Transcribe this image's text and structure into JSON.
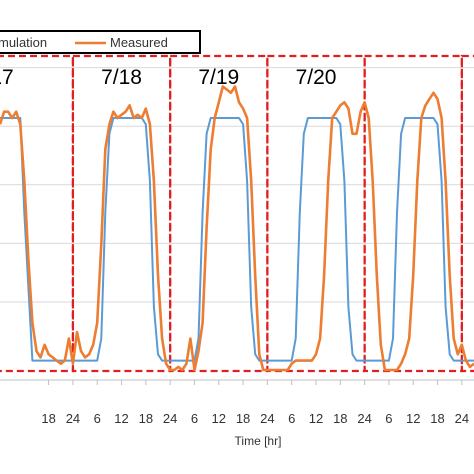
{
  "chart_data": {
    "type": "line",
    "xlabel": "Time [hr]",
    "x_tick_labels": [
      "18",
      "24",
      "6",
      "12",
      "18",
      "24",
      "6",
      "12",
      "18",
      "24",
      "6",
      "12",
      "18",
      "24",
      "6",
      "12",
      "18",
      "24"
    ],
    "x_tick_hours": [
      18,
      24,
      30,
      36,
      42,
      48,
      54,
      60,
      66,
      72,
      78,
      84,
      90,
      96,
      102,
      108,
      114,
      120
    ],
    "xlim": [
      6,
      123
    ],
    "ylim": [
      0,
      1
    ],
    "grid": "horizontal",
    "legend": {
      "placement": "top-left",
      "entries": [
        "mulation",
        "Measured"
      ]
    },
    "day_labels": [
      {
        "text": "17",
        "hour": 6.5
      },
      {
        "text": "7/18",
        "hour": 36
      },
      {
        "text": "7/19",
        "hour": 60
      },
      {
        "text": "7/20",
        "hour": 84
      }
    ],
    "day_boundaries": [
      24,
      48,
      72,
      96,
      120
    ],
    "series": [
      {
        "name": "mulation",
        "color": "#5b9bd5",
        "x": [
          6,
          7,
          8,
          9,
          10,
          11,
          12,
          14,
          15,
          30,
          31,
          32,
          33,
          34,
          35,
          41,
          42,
          43,
          44,
          45,
          46,
          54,
          55,
          56,
          57,
          58,
          59,
          65,
          66,
          67,
          68,
          69,
          70,
          78,
          79,
          80,
          81,
          82,
          83,
          89,
          90,
          91,
          92,
          93,
          94,
          102,
          103,
          104,
          105,
          106,
          107,
          113,
          114,
          115,
          116,
          117,
          118,
          123
        ],
        "values": [
          0.8,
          0.8,
          0.8,
          0.8,
          0.8,
          0.8,
          0.5,
          0.03,
          0.03,
          0.03,
          0.1,
          0.5,
          0.75,
          0.8,
          0.8,
          0.8,
          0.78,
          0.6,
          0.2,
          0.05,
          0.03,
          0.03,
          0.1,
          0.5,
          0.75,
          0.8,
          0.8,
          0.8,
          0.78,
          0.6,
          0.2,
          0.05,
          0.03,
          0.03,
          0.1,
          0.5,
          0.75,
          0.8,
          0.8,
          0.8,
          0.78,
          0.6,
          0.2,
          0.05,
          0.03,
          0.03,
          0.1,
          0.5,
          0.75,
          0.8,
          0.8,
          0.8,
          0.78,
          0.6,
          0.2,
          0.05,
          0.03,
          0.03
        ]
      },
      {
        "name": "Measured",
        "color": "#ed7d31",
        "x": [
          6,
          7,
          8,
          9,
          10,
          11,
          12,
          13,
          14,
          15,
          16,
          17,
          18,
          19,
          20,
          21,
          22,
          23,
          24,
          25,
          26,
          27,
          28,
          29,
          30,
          31,
          32,
          33,
          34,
          35,
          36,
          37,
          38,
          39,
          40,
          41,
          42,
          43,
          44,
          45,
          46,
          47,
          48,
          49,
          50,
          51,
          52,
          53,
          54,
          55,
          56,
          57,
          58,
          59,
          60,
          61,
          62,
          63,
          64,
          65,
          66,
          67,
          68,
          69,
          70,
          71,
          72,
          73,
          74,
          75,
          76,
          77,
          78,
          79,
          80,
          81,
          82,
          83,
          84,
          85,
          86,
          87,
          88,
          89,
          90,
          91,
          92,
          93,
          94,
          95,
          96,
          97,
          98,
          99,
          100,
          101,
          102,
          103,
          104,
          105,
          106,
          107,
          108,
          109,
          110,
          111,
          112,
          113,
          114,
          115,
          116,
          117,
          118,
          119,
          120,
          121,
          122,
          123
        ],
        "values": [
          0.78,
          0.82,
          0.82,
          0.8,
          0.82,
          0.78,
          0.6,
          0.35,
          0.15,
          0.06,
          0.04,
          0.08,
          0.05,
          0.04,
          0.03,
          0.02,
          0.03,
          0.1,
          0.02,
          0.12,
          0.06,
          0.04,
          0.05,
          0.08,
          0.15,
          0.4,
          0.7,
          0.78,
          0.82,
          0.8,
          0.81,
          0.82,
          0.84,
          0.8,
          0.81,
          0.8,
          0.83,
          0.78,
          0.6,
          0.3,
          0.1,
          0.02,
          0.0,
          0.0,
          0.01,
          0.0,
          0.02,
          0.1,
          0.0,
          0.06,
          0.15,
          0.45,
          0.7,
          0.8,
          0.85,
          0.9,
          0.89,
          0.88,
          0.9,
          0.85,
          0.83,
          0.8,
          0.6,
          0.3,
          0.05,
          0.0,
          0.0,
          0.0,
          0.0,
          0.0,
          0.0,
          0.0,
          0.02,
          0.03,
          0.03,
          0.03,
          0.03,
          0.03,
          0.05,
          0.1,
          0.3,
          0.6,
          0.8,
          0.82,
          0.84,
          0.85,
          0.83,
          0.75,
          0.75,
          0.82,
          0.85,
          0.8,
          0.6,
          0.3,
          0.08,
          0.0,
          0.0,
          0.0,
          0.0,
          0.02,
          0.05,
          0.1,
          0.3,
          0.6,
          0.8,
          0.84,
          0.86,
          0.88,
          0.86,
          0.8,
          0.6,
          0.3,
          0.1,
          0.05,
          0.08,
          0.03,
          0.01,
          0.02
        ]
      }
    ]
  }
}
